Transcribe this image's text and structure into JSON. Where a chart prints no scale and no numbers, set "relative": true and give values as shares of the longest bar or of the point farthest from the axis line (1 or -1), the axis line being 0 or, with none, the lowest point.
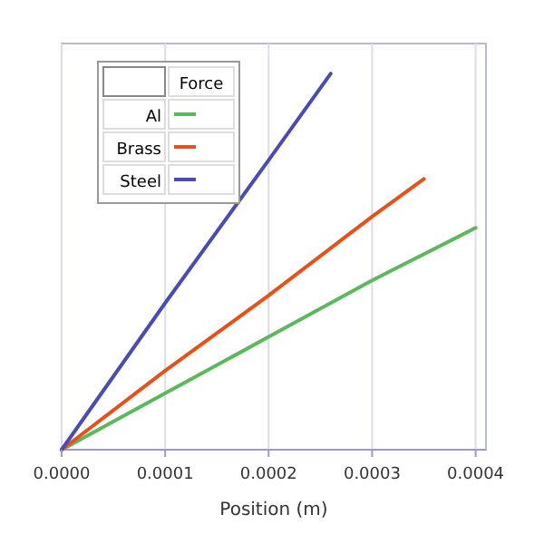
{
  "chart_data": {
    "type": "line",
    "xlabel": "Position (m)",
    "legend_title": "Force",
    "relative": true,
    "xlim": [
      0,
      0.00041
    ],
    "xticks": [
      {
        "value": 0,
        "label": "0.0000"
      },
      {
        "value": 0.0001,
        "label": "0.0001"
      },
      {
        "value": 0.0002,
        "label": "0.0002"
      },
      {
        "value": 0.0003,
        "label": "0.0003"
      },
      {
        "value": 0.0004,
        "label": "0.0004"
      }
    ],
    "grid": "x",
    "legend": "top left",
    "marker": "none",
    "line_style": "solid",
    "series": [
      {
        "name": "Al",
        "color": "#5cb85c",
        "x": [
          0,
          0.0001,
          0.0002,
          0.0003,
          0.0004
        ],
        "values": [
          0,
          0.15,
          0.3,
          0.45,
          0.59
        ]
      },
      {
        "name": "Brass",
        "color": "#e8501a",
        "x": [
          0,
          0.0001,
          0.0002,
          0.0003,
          0.00035
        ],
        "values": [
          0,
          0.21,
          0.41,
          0.62,
          0.72
        ]
      },
      {
        "name": "Steel",
        "color": "#4b4bb4",
        "x": [
          0,
          0.0001,
          0.0002,
          0.00026
        ],
        "values": [
          0,
          0.39,
          0.77,
          1
        ]
      }
    ]
  }
}
